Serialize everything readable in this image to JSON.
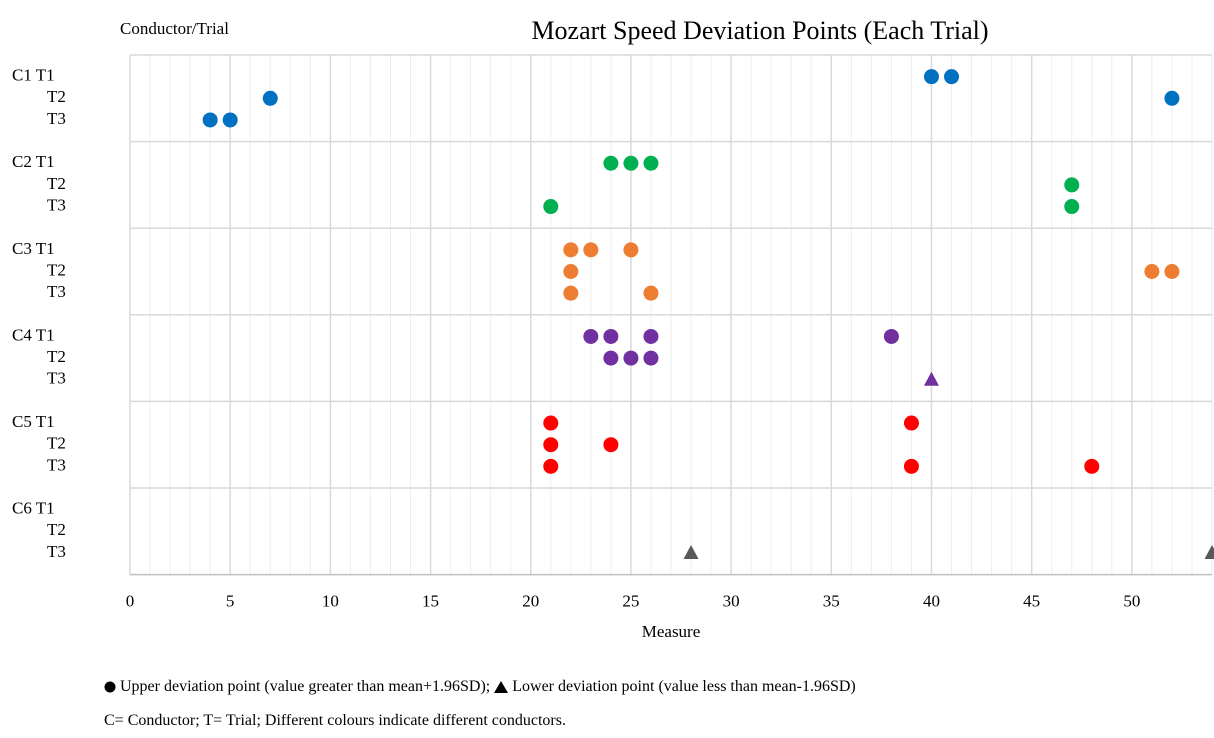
{
  "chart_data": {
    "type": "scatter",
    "title": "Mozart Speed Deviation Points (Each Trial)",
    "y_axis_label": "Conductor/Trial",
    "x_axis_label": "Measure",
    "categories": [
      "C1 T1",
      "T2",
      "T3",
      "C2 T1",
      "T2",
      "T3",
      "C3 T1",
      "T2",
      "T3",
      "C4 T1",
      "T2",
      "T3",
      "C5 T1",
      "T2",
      "T3",
      "C6 T1",
      "T2",
      "T3"
    ],
    "xlim": [
      0,
      54
    ],
    "xticks": [
      0,
      5,
      10,
      15,
      20,
      25,
      30,
      35,
      40,
      45,
      50
    ],
    "grid": true,
    "series": [
      {
        "color": "#0070c0",
        "marker": "circle",
        "x": [
          40,
          41,
          7,
          52,
          4,
          5
        ],
        "y": [
          0,
          0,
          1,
          1,
          2,
          2
        ]
      },
      {
        "color": "#00b050",
        "marker": "circle",
        "x": [
          24,
          25,
          26,
          47,
          21,
          47
        ],
        "y": [
          3,
          3,
          3,
          4,
          5,
          5
        ]
      },
      {
        "color": "#ed7d31",
        "marker": "circle",
        "x": [
          22,
          23,
          25,
          22,
          51,
          52,
          22,
          26
        ],
        "y": [
          6,
          6,
          6,
          7,
          7,
          7,
          8,
          8
        ]
      },
      {
        "color": "#7030a0",
        "marker": "circle",
        "x": [
          23,
          24,
          26,
          38,
          24,
          25,
          26
        ],
        "y": [
          9,
          9,
          9,
          9,
          10,
          10,
          10
        ]
      },
      {
        "color": "#7030a0",
        "marker": "triangle",
        "x": [
          40
        ],
        "y": [
          11
        ]
      },
      {
        "color": "#ff0000",
        "marker": "circle",
        "x": [
          21,
          39,
          21,
          24,
          21,
          39,
          48
        ],
        "y": [
          12,
          12,
          13,
          13,
          14,
          14,
          14
        ]
      },
      {
        "color": "#595959",
        "marker": "triangle",
        "x": [
          28,
          54
        ],
        "y": [
          17,
          17
        ]
      }
    ],
    "notes": [
      "Upper deviation point (value greater than mean+1.96SD);",
      "Lower deviation point (value less than mean-1.96SD)",
      "C= Conductor; T= Trial; Different colours indicate different conductors."
    ]
  }
}
